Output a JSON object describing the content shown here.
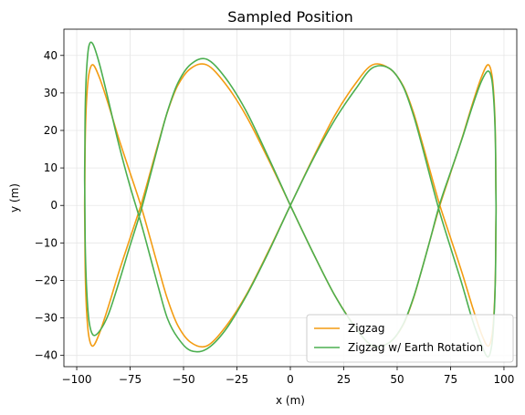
{
  "chart_data": {
    "type": "line",
    "title": "Sampled Position",
    "xlabel": "x (m)",
    "ylabel": "y (m)",
    "xlim": [
      -106,
      106
    ],
    "ylim": [
      -43,
      47
    ],
    "xticks": [
      -100,
      -75,
      -50,
      -25,
      0,
      25,
      50,
      75,
      100
    ],
    "xtick_labels": [
      "−100",
      "−75",
      "−50",
      "−25",
      "0",
      "25",
      "50",
      "75",
      "100"
    ],
    "yticks": [
      -40,
      -30,
      -20,
      -10,
      0,
      10,
      20,
      30,
      40
    ],
    "ytick_labels": [
      "−40",
      "−30",
      "−20",
      "−10",
      "0",
      "10",
      "20",
      "30",
      "40"
    ],
    "grid": true,
    "legend_position": "lower-right",
    "series": [
      {
        "name": "Zigzag",
        "color": "#f39c12",
        "x": [
          0,
          -10.5,
          -20.8,
          -30.5,
          -39.2,
          -46.7,
          -52.7,
          -57.5,
          -61.6,
          -65.5,
          -70.0,
          -75.2,
          -80.4,
          -85.2,
          -89.3,
          -92.4,
          -94.3,
          -95.4,
          -96.0,
          -96.2,
          -96.3,
          -96.2,
          -96.0,
          -95.4,
          -94.3,
          -92.4,
          -89.3,
          -85.2,
          -80.4,
          -75.2,
          -70.0,
          -65.5,
          -61.6,
          -57.5,
          -52.7,
          -46.7,
          -39.2,
          -30.5,
          -20.8,
          -10.5,
          0,
          10.5,
          20.8,
          30.5,
          38.5,
          46.5,
          52.7,
          57.5,
          61.6,
          65.5,
          70.0,
          75.2,
          80.4,
          85.2,
          89.3,
          92.4,
          94.3,
          95.4,
          96.0,
          96.2,
          96.3,
          96.2,
          96.0,
          95.4,
          94.3,
          92.4,
          89.3,
          85.2,
          80.4,
          75.2,
          70.0,
          65.5,
          61.6,
          57.5,
          52.7,
          46.5,
          38.5,
          30.5,
          20.8,
          10.5,
          0
        ],
        "y": [
          0,
          12.5,
          24.0,
          32.5,
          37.5,
          36.5,
          32.0,
          25.0,
          17.0,
          9.0,
          0,
          -9.0,
          -18.0,
          -27.0,
          -34.0,
          -37.5,
          -35.0,
          -28.0,
          -18.0,
          -6.0,
          0,
          6.0,
          18.0,
          28.0,
          35.0,
          37.5,
          34.0,
          27.0,
          18.0,
          9.0,
          0,
          -9.0,
          -17.0,
          -25.0,
          -32.0,
          -36.5,
          -37.5,
          -32.5,
          -24.0,
          -12.5,
          0,
          12.5,
          24.0,
          32.5,
          37.5,
          36.5,
          32.0,
          25.0,
          17.0,
          9.0,
          0,
          -9.0,
          -18.0,
          -27.0,
          -34.0,
          -37.5,
          -35.0,
          -28.0,
          -18.0,
          -6.0,
          0,
          6.0,
          18.0,
          28.0,
          35.0,
          37.5,
          34.0,
          27.0,
          18.0,
          9.0,
          0,
          -9.0,
          -17.0,
          -25.0,
          -32.0,
          -36.5,
          -37.5,
          -32.5,
          -24.0,
          -12.5,
          0
        ]
      },
      {
        "name": "Zigzag w/ Earth Rotation",
        "color": "#4caf50",
        "x": [
          0,
          -10.5,
          -20.8,
          -30.5,
          -39.2,
          -46.7,
          -52.7,
          -57.5,
          -61.6,
          -65.5,
          -70.0,
          -75.2,
          -80.4,
          -85.2,
          -89.3,
          -92.4,
          -94.3,
          -95.4,
          -96.0,
          -96.2,
          -96.3,
          -96.2,
          -96.0,
          -95.4,
          -94.3,
          -92.4,
          -89.3,
          -85.2,
          -80.4,
          -75.2,
          -70.0,
          -65.5,
          -61.6,
          -57.5,
          -52.7,
          -46.7,
          -39.2,
          -30.5,
          -20.8,
          -10.5,
          0,
          10.5,
          20.8,
          30.5,
          38.5,
          46.5,
          52.7,
          57.5,
          61.6,
          65.5,
          70.0,
          75.2,
          80.4,
          85.2,
          89.3,
          92.4,
          94.3,
          95.4,
          96.0,
          96.2,
          96.3,
          96.2,
          96.0,
          95.4,
          94.3,
          92.4,
          89.3,
          85.2,
          80.4,
          75.2,
          70.0,
          65.5,
          61.6,
          57.5,
          52.7,
          46.5,
          38.5,
          30.5,
          20.8,
          10.5,
          0
        ],
        "y": [
          0,
          13.1,
          25.3,
          34.1,
          39.0,
          37.6,
          32.6,
          25.1,
          16.6,
          8.1,
          -1.5,
          -11.0,
          -20.8,
          -29.1,
          -33.5,
          -34.5,
          -30.6,
          -21.8,
          -11.0,
          1.6,
          7.5,
          14.0,
          26.4,
          36.0,
          42.5,
          43.0,
          37.6,
          28.1,
          16.5,
          5.4,
          -4.5,
          -13.9,
          -22.2,
          -30.2,
          -35.3,
          -38.7,
          -38.3,
          -33.3,
          -24.3,
          -12.8,
          0,
          12.2,
          22.8,
          31.0,
          36.7,
          36.5,
          31.8,
          24.3,
          16.0,
          7.5,
          -2.0,
          -11.6,
          -21.1,
          -30.5,
          -36.9,
          -40.4,
          -37.2,
          -29.1,
          -18.9,
          -7.2,
          -1.5,
          4.6,
          16.7,
          26.4,
          33.6,
          35.8,
          32.9,
          26.4,
          17.8,
          9.2,
          0.5,
          -9.0,
          -17.0,
          -24.8,
          -31.8,
          -36.5,
          -37.4,
          -32.6,
          -24.0,
          -12.5,
          0
        ]
      }
    ]
  }
}
